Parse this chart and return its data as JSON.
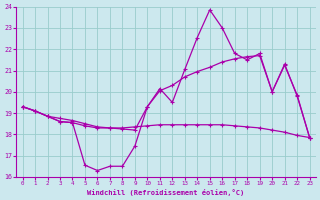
{
  "xlabel": "Windchill (Refroidissement éolien,°C)",
  "xlim": [
    -0.5,
    23.5
  ],
  "ylim": [
    16,
    24
  ],
  "yticks": [
    16,
    17,
    18,
    19,
    20,
    21,
    22,
    23,
    24
  ],
  "xticks": [
    0,
    1,
    2,
    3,
    4,
    5,
    6,
    7,
    8,
    9,
    10,
    11,
    12,
    13,
    14,
    15,
    16,
    17,
    18,
    19,
    20,
    21,
    22,
    23
  ],
  "bg_color": "#cce8ee",
  "line_color": "#aa00aa",
  "grid_color": "#99cccc",
  "line1_x": [
    0,
    1,
    2,
    3,
    4,
    5,
    6,
    7,
    8,
    9,
    10,
    11,
    12,
    13,
    14,
    15,
    16,
    17,
    18,
    19,
    20,
    21,
    22,
    23
  ],
  "line1_y": [
    19.3,
    19.1,
    18.85,
    18.6,
    18.55,
    18.4,
    18.3,
    18.3,
    18.3,
    18.35,
    18.4,
    18.45,
    18.45,
    18.45,
    18.45,
    18.45,
    18.45,
    18.4,
    18.35,
    18.3,
    18.2,
    18.1,
    17.95,
    17.85
  ],
  "line2_x": [
    0,
    1,
    2,
    3,
    4,
    5,
    6,
    7,
    8,
    9,
    10,
    11,
    12,
    13,
    14,
    15,
    16,
    17,
    18,
    19,
    20,
    21,
    22,
    23
  ],
  "line2_y": [
    19.3,
    19.1,
    18.85,
    18.6,
    18.55,
    16.55,
    16.3,
    16.5,
    16.5,
    17.45,
    19.3,
    20.15,
    19.5,
    21.05,
    22.55,
    23.85,
    23.0,
    21.8,
    21.5,
    21.8,
    20.0,
    21.3,
    19.8,
    17.85
  ],
  "line3_x": [
    0,
    1,
    2,
    3,
    4,
    5,
    6,
    7,
    8,
    9,
    10,
    11,
    12,
    13,
    14,
    15,
    16,
    17,
    18,
    19,
    20,
    21,
    22,
    23
  ],
  "line3_y": [
    19.3,
    19.1,
    18.85,
    18.75,
    18.65,
    18.5,
    18.35,
    18.3,
    18.25,
    18.2,
    19.3,
    20.05,
    20.3,
    20.7,
    20.95,
    21.15,
    21.4,
    21.55,
    21.65,
    21.7,
    20.0,
    21.25,
    19.85,
    17.85
  ]
}
